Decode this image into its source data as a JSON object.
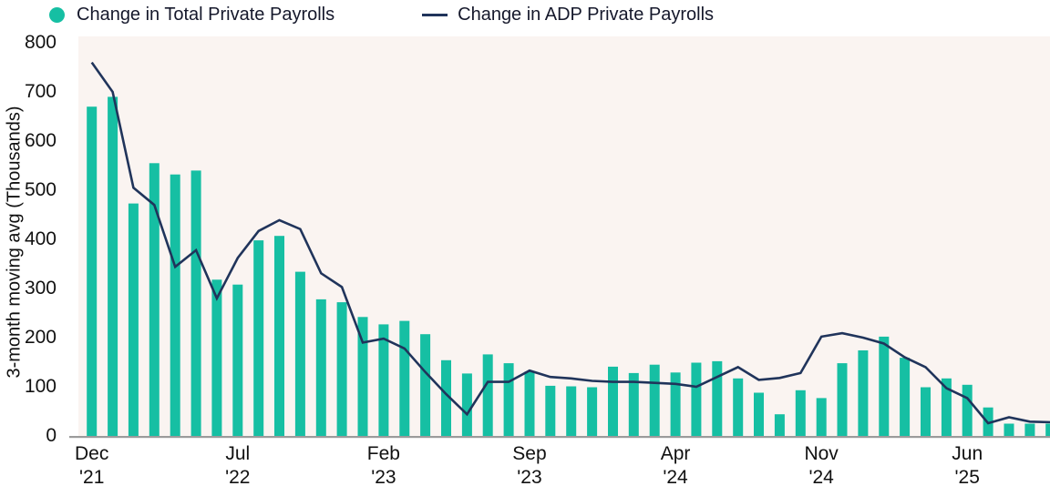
{
  "legend": {
    "items": [
      {
        "label": "Change in Total Private Payrolls",
        "marker": "dot"
      },
      {
        "label": "Change in ADP Private Payrolls",
        "marker": "line"
      }
    ]
  },
  "y_axis": {
    "title": "3-month moving avg (Thousands)",
    "ticks": [
      800,
      700,
      600,
      500,
      400,
      300,
      200,
      100,
      0
    ]
  },
  "x_axis": {
    "ticks": [
      {
        "line1": "Dec",
        "line2": "'21",
        "month_index": 0
      },
      {
        "line1": "Jul",
        "line2": "'22",
        "month_index": 7
      },
      {
        "line1": "Feb",
        "line2": "'23",
        "month_index": 14
      },
      {
        "line1": "Sep",
        "line2": "'23",
        "month_index": 21
      },
      {
        "line1": "Apr",
        "line2": "'24",
        "month_index": 28
      },
      {
        "line1": "Nov",
        "line2": "'24",
        "month_index": 35
      },
      {
        "line1": "Jun",
        "line2": "'25",
        "month_index": 42
      }
    ]
  },
  "colors": {
    "bar": "#16BFA3",
    "line": "#20345B",
    "plot_bg": "#FAF4F1",
    "axis_line": "#9B9B9B",
    "text": "#111111"
  },
  "chart_data": {
    "type": "bar",
    "note": "bar series plus overlaid line series, monthly data",
    "x": [
      "Dec '21",
      "Jan '22",
      "Feb '22",
      "Mar '22",
      "Apr '22",
      "May '22",
      "Jun '22",
      "Jul '22",
      "Aug '22",
      "Sep '22",
      "Oct '22",
      "Nov '22",
      "Dec '22",
      "Jan '23",
      "Feb '23",
      "Mar '23",
      "Apr '23",
      "May '23",
      "Jun '23",
      "Jul '23",
      "Aug '23",
      "Sep '23",
      "Oct '23",
      "Nov '23",
      "Dec '23",
      "Jan '24",
      "Feb '24",
      "Mar '24",
      "Apr '24",
      "May '24",
      "Jun '24",
      "Jul '24",
      "Aug '24",
      "Sep '24",
      "Oct '24",
      "Nov '24",
      "Dec '24",
      "Jan '25",
      "Feb '25",
      "Mar '25",
      "Apr '25",
      "May '25",
      "Jun '25",
      "Jul '25",
      "Aug '25",
      "Sep '25",
      "Oct '25"
    ],
    "series": [
      {
        "name": "Change in Total Private Payrolls",
        "type": "bar",
        "values": [
          670,
          690,
          473,
          555,
          532,
          540,
          318,
          308,
          398,
          407,
          334,
          278,
          272,
          242,
          227,
          234,
          207,
          154,
          127,
          166,
          148,
          131,
          102,
          101,
          99,
          141,
          128,
          145,
          129,
          149,
          152,
          117,
          88,
          44,
          93,
          77,
          148,
          174,
          202,
          159,
          99,
          117,
          104,
          58,
          25,
          25,
          25
        ]
      },
      {
        "name": "Change in ADP Private Payrolls",
        "type": "line",
        "values": [
          760,
          700,
          505,
          470,
          344,
          378,
          280,
          362,
          417,
          439,
          421,
          331,
          303,
          190,
          198,
          178,
          130,
          85,
          44,
          110,
          110,
          133,
          120,
          117,
          112,
          110,
          110,
          108,
          106,
          100,
          120,
          140,
          114,
          118,
          128,
          202,
          209,
          200,
          188,
          160,
          140,
          97,
          77,
          26,
          38,
          29,
          28
        ]
      }
    ],
    "title": "",
    "xlabel": "",
    "ylabel": "3-month moving avg (Thousands)",
    "ylim": [
      0,
      800
    ],
    "grid": false,
    "legend_position": "top-left"
  }
}
